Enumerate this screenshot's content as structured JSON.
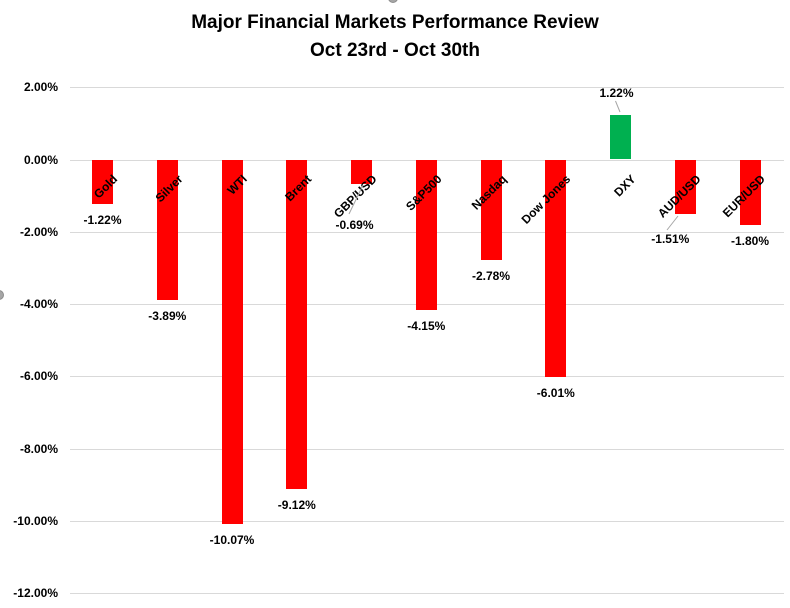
{
  "chart_data": {
    "type": "bar",
    "title": "Major Financial Markets Performance Review",
    "subtitle": "Oct 23rd - Oct 30th",
    "categories": [
      "Gold",
      "Silver",
      "WTI",
      "Brent",
      "GBP/USD",
      "S&P500",
      "Nasdaq",
      "Dow Jones",
      "DXY",
      "AUD/USD",
      "EUR/USD"
    ],
    "values": [
      -1.22,
      -3.89,
      -10.07,
      -9.12,
      -0.69,
      -4.15,
      -2.78,
      -6.01,
      1.22,
      -1.51,
      -1.8
    ],
    "data_labels": [
      "-1.22%",
      "-3.89%",
      "-10.07%",
      "-9.12%",
      "-0.69%",
      "-4.15%",
      "-2.78%",
      "-6.01%",
      "1.22%",
      "-1.51%",
      "-1.80%"
    ],
    "xlabel": "",
    "ylabel": "",
    "ylim": [
      -12,
      2
    ],
    "yticks": [
      {
        "value": 2,
        "label": "2.00%"
      },
      {
        "value": 0,
        "label": "0.00%"
      },
      {
        "value": -2,
        "label": "-2.00%"
      },
      {
        "value": -4,
        "label": "-4.00%"
      },
      {
        "value": -6,
        "label": "-6.00%"
      },
      {
        "value": -8,
        "label": "-8.00%"
      },
      {
        "value": -10,
        "label": "-10.00%"
      },
      {
        "value": -12,
        "label": "-12.00%"
      }
    ],
    "grid": true,
    "legend": "none",
    "category_label_rotation_deg": -45,
    "colors": {
      "negative_bar": "#ff0000",
      "positive_bar": "#00b050",
      "gridline": "#d9d9d9",
      "text": "#000000",
      "leader_line": "#a6a6a6"
    }
  }
}
